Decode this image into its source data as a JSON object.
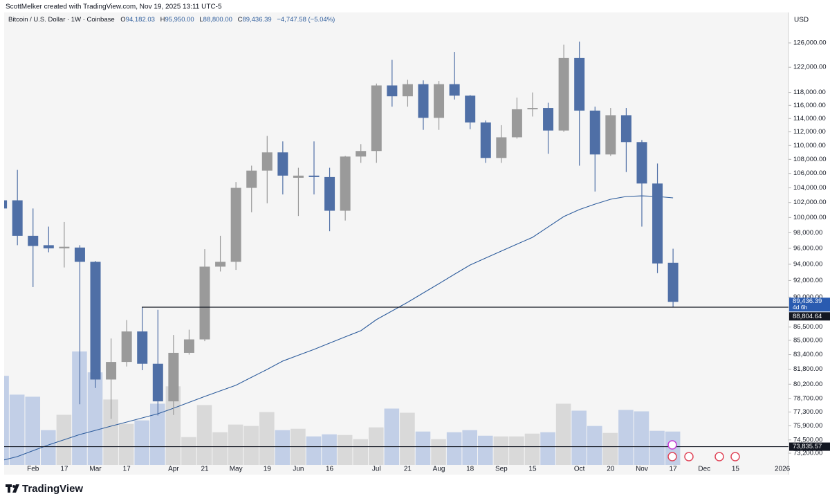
{
  "chart_data": {
    "type": "candlestick",
    "attribution": "ScottMelker created with TradingView.com, Nov 19, 2025 13:11 UTC-5",
    "symbol": "Bitcoin / U.S. Dollar · 1W · Coinbase",
    "ohlc": [
      {
        "key": "O",
        "value": "94,182.03"
      },
      {
        "key": "H",
        "value": "95,950.00"
      },
      {
        "key": "L",
        "value": "88,800.00"
      },
      {
        "key": "C",
        "value": "89,436.39"
      }
    ],
    "change": "−4,747.58 (−5.04%)",
    "currency": "USD",
    "brand": "TradingView",
    "log_scale": true,
    "grid": false,
    "up_color": "#9a9a9a",
    "down_color": "#4f6fa6",
    "up_volume_color": "#d4d4d4",
    "down_volume_color": "#b8c8e4",
    "ma_color": "#2d5c9c",
    "categories": [
      null,
      null,
      "Feb",
      null,
      "17",
      null,
      "Mar",
      null,
      "17",
      null,
      null,
      "Apr",
      null,
      "21",
      null,
      "May",
      null,
      "19",
      null,
      "Jun",
      null,
      "16",
      null,
      null,
      "Jul",
      null,
      "21",
      null,
      "Aug",
      null,
      "18",
      null,
      "Sep",
      null,
      "15",
      null,
      null,
      "Oct",
      null,
      "20",
      null,
      "Nov",
      null,
      "17",
      null,
      "Dec",
      null,
      "15",
      null,
      null,
      "2026"
    ],
    "open": [
      102300,
      102300,
      97600,
      96400,
      96000,
      96100,
      94300,
      80700,
      82600,
      86000,
      82400,
      78400,
      83600,
      85100,
      93700,
      94300,
      104000,
      106400,
      109000,
      105400,
      105700,
      105500,
      100900,
      108400,
      109200,
      119100,
      117400,
      119300,
      114100,
      119300,
      117500,
      113400,
      108200,
      111200,
      115400,
      115600,
      112200,
      123500,
      115200,
      108700,
      114500,
      110500,
      104600,
      94182.03,
      null,
      null,
      null,
      null,
      null,
      null,
      null
    ],
    "high": [
      103500,
      106500,
      101200,
      98800,
      99400,
      96400,
      94400,
      85200,
      87300,
      88800,
      88500,
      85600,
      86200,
      95900,
      97600,
      104800,
      107100,
      111400,
      110600,
      106800,
      110600,
      106800,
      108500,
      110200,
      119400,
      123200,
      120000,
      119900,
      119800,
      124500,
      117600,
      113700,
      113000,
      117200,
      118000,
      116400,
      125700,
      126200,
      115800,
      115600,
      115600,
      110800,
      107400,
      95950,
      null,
      null,
      null,
      null,
      null,
      null,
      null
    ],
    "low": [
      100000,
      96400,
      91200,
      95500,
      93600,
      78100,
      79800,
      76600,
      82100,
      81700,
      76950,
      77000,
      83400,
      84900,
      93100,
      93300,
      100700,
      101900,
      103100,
      100200,
      103100,
      98200,
      99600,
      107500,
      107500,
      115800,
      115800,
      112300,
      112300,
      116900,
      112400,
      107500,
      107500,
      111000,
      114300,
      108800,
      112000,
      107100,
      103500,
      108500,
      106200,
      98800,
      92900,
      88800,
      null,
      null,
      null,
      null,
      null,
      null,
      null
    ],
    "close": [
      101200,
      97600,
      96300,
      96000,
      96200,
      94300,
      80700,
      82600,
      86000,
      82400,
      78400,
      83600,
      85100,
      93700,
      94300,
      104000,
      106400,
      109000,
      105700,
      105700,
      105500,
      100900,
      108400,
      109200,
      119100,
      117400,
      119300,
      114100,
      119300,
      117500,
      113400,
      108200,
      111200,
      115400,
      115600,
      112200,
      123500,
      115200,
      108700,
      114500,
      110500,
      104600,
      94100,
      89436.39,
      null,
      null,
      null,
      null,
      null,
      null,
      null
    ],
    "volume": [
      128,
      101,
      98,
      50,
      72,
      163,
      133,
      94,
      59,
      64,
      88,
      113,
      40,
      86,
      47,
      58,
      56,
      76,
      50,
      52,
      41,
      44,
      43,
      37,
      54,
      81,
      75,
      48,
      37,
      47,
      50,
      42,
      41,
      41,
      45,
      47,
      88,
      78,
      56,
      46,
      79,
      77,
      49,
      48,
      null,
      null,
      null,
      null,
      null,
      null,
      null
    ],
    "vlim": [
      0,
      650
    ],
    "ma": [
      72500,
      72870,
      73440,
      74010,
      74520,
      75030,
      75450,
      75870,
      76280,
      76700,
      77120,
      77690,
      78300,
      78910,
      79500,
      80090,
      80940,
      81790,
      82700,
      83340,
      83980,
      84680,
      85380,
      86080,
      87360,
      88370,
      89380,
      90500,
      91610,
      92760,
      93910,
      94780,
      95650,
      96530,
      97410,
      98770,
      100120,
      101050,
      101790,
      102440,
      102820,
      102900,
      102820,
      102630,
      null,
      null,
      null,
      null,
      null,
      null,
      null
    ],
    "last_close_label": "89,436.39",
    "countdown": "4d 6h",
    "hlines": [
      {
        "value": 88804.64,
        "label": "88,804.64"
      },
      {
        "value": 73835.57,
        "label": "73,835.57"
      }
    ],
    "ylim": [
      72070,
      131180
    ],
    "yticks": [
      {
        "value": 126000,
        "label": "126,000.00"
      },
      {
        "value": 122000,
        "label": "122,000.00"
      },
      {
        "value": 118000,
        "label": "118,000.00"
      },
      {
        "value": 116000,
        "label": "116,000.00"
      },
      {
        "value": 114000,
        "label": "114,000.00"
      },
      {
        "value": 112000,
        "label": "112,000.00"
      },
      {
        "value": 110000,
        "label": "110,000.00"
      },
      {
        "value": 108000,
        "label": "108,000.00"
      },
      {
        "value": 106000,
        "label": "106,000.00"
      },
      {
        "value": 104000,
        "label": "104,000.00"
      },
      {
        "value": 102000,
        "label": "102,000.00"
      },
      {
        "value": 100000,
        "label": "100,000.00"
      },
      {
        "value": 98000,
        "label": "98,000.00"
      },
      {
        "value": 96000,
        "label": "96,000.00"
      },
      {
        "value": 94000,
        "label": "94,000.00"
      },
      {
        "value": 92000,
        "label": "92,000.00"
      },
      {
        "value": 90000,
        "label": "90,000.00"
      },
      {
        "value": 86500,
        "label": "86,500.00"
      },
      {
        "value": 85000,
        "label": "85,000.00"
      },
      {
        "value": 83400,
        "label": "83,400.00"
      },
      {
        "value": 81800,
        "label": "81,800.00"
      },
      {
        "value": 80200,
        "label": "80,200.00"
      },
      {
        "value": 78700,
        "label": "78,700.00"
      },
      {
        "value": 77300,
        "label": "77,300.00"
      },
      {
        "value": 75900,
        "label": "75,900.00"
      },
      {
        "value": 74500,
        "label": "74,500.00"
      },
      {
        "value": 73200,
        "label": "73,200.00"
      }
    ]
  }
}
